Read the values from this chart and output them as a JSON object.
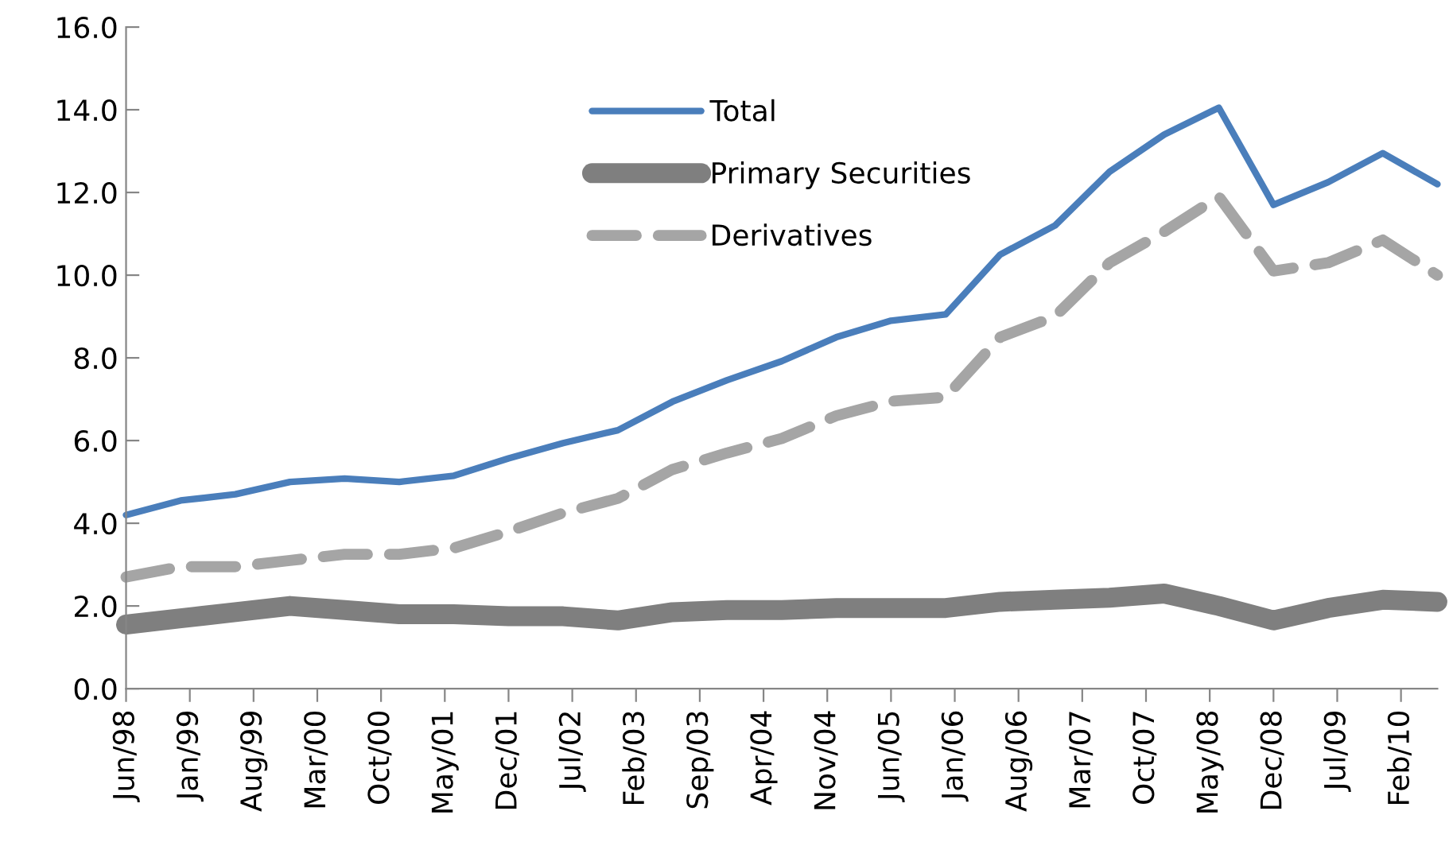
{
  "chart_data": {
    "type": "line",
    "x": [
      "1998-06",
      "1998-12",
      "1999-06",
      "1999-12",
      "2000-06",
      "2000-12",
      "2001-06",
      "2001-12",
      "2002-06",
      "2002-12",
      "2003-06",
      "2003-12",
      "2004-06",
      "2004-12",
      "2005-06",
      "2005-12",
      "2006-06",
      "2006-12",
      "2007-06",
      "2007-12",
      "2008-06",
      "2008-12",
      "2009-06",
      "2009-12",
      "2010-06"
    ],
    "series": [
      {
        "name": "Total",
        "color": "#4a7ebb",
        "line_style": "solid",
        "values": [
          4.2,
          4.55,
          4.7,
          5.0,
          5.08,
          5.0,
          5.15,
          5.57,
          5.94,
          6.25,
          6.94,
          7.46,
          7.92,
          8.5,
          8.9,
          9.05,
          10.5,
          11.2,
          12.5,
          13.4,
          14.05,
          11.7,
          12.25,
          12.95,
          12.2
        ]
      },
      {
        "name": "Primary Securities",
        "color": "#7f7f7f",
        "line_style": "solid",
        "values": [
          1.55,
          1.7,
          1.85,
          2.0,
          1.9,
          1.8,
          1.8,
          1.75,
          1.75,
          1.65,
          1.85,
          1.9,
          1.9,
          1.95,
          1.95,
          1.95,
          2.1,
          2.15,
          2.2,
          2.3,
          2.0,
          1.65,
          1.95,
          2.15,
          2.1
        ]
      },
      {
        "name": "Derivatives",
        "color": "#a5a5a5",
        "line_style": "dashed",
        "values": [
          2.7,
          2.95,
          2.95,
          3.1,
          3.25,
          3.25,
          3.4,
          3.8,
          4.25,
          4.6,
          5.3,
          5.7,
          6.05,
          6.6,
          6.95,
          7.05,
          8.5,
          9.0,
          10.3,
          11.05,
          11.9,
          10.1,
          10.3,
          10.85,
          10.0
        ]
      }
    ],
    "xlim": [
      "1998-06",
      "2010-06"
    ],
    "xticks": [
      {
        "value": "1998-06",
        "label": "Jun/98"
      },
      {
        "value": "1999-01",
        "label": "Jan/99"
      },
      {
        "value": "1999-08",
        "label": "Aug/99"
      },
      {
        "value": "2000-03",
        "label": "Mar/00"
      },
      {
        "value": "2000-10",
        "label": "Oct/00"
      },
      {
        "value": "2001-05",
        "label": "May/01"
      },
      {
        "value": "2001-12",
        "label": "Dec/01"
      },
      {
        "value": "2002-07",
        "label": "Jul/02"
      },
      {
        "value": "2003-02",
        "label": "Feb/03"
      },
      {
        "value": "2003-09",
        "label": "Sep/03"
      },
      {
        "value": "2004-04",
        "label": "Apr/04"
      },
      {
        "value": "2004-11",
        "label": "Nov/04"
      },
      {
        "value": "2005-06",
        "label": "Jun/05"
      },
      {
        "value": "2006-01",
        "label": "Jan/06"
      },
      {
        "value": "2006-08",
        "label": "Aug/06"
      },
      {
        "value": "2007-03",
        "label": "Mar/07"
      },
      {
        "value": "2007-10",
        "label": "Oct/07"
      },
      {
        "value": "2008-05",
        "label": "May/08"
      },
      {
        "value": "2008-12",
        "label": "Dec/08"
      },
      {
        "value": "2009-07",
        "label": "Jul/09"
      },
      {
        "value": "2010-02",
        "label": "Feb/10"
      }
    ],
    "ylim": [
      0,
      16
    ],
    "yticks": [
      {
        "value": 0,
        "label": "0.0"
      },
      {
        "value": 2,
        "label": "2.0"
      },
      {
        "value": 4,
        "label": "4.0"
      },
      {
        "value": 6,
        "label": "6.0"
      },
      {
        "value": 8,
        "label": "8.0"
      },
      {
        "value": 10,
        "label": "10.0"
      },
      {
        "value": 12,
        "label": "12.0"
      },
      {
        "value": 14,
        "label": "14.0"
      },
      {
        "value": 16,
        "label": "16.0"
      }
    ],
    "grid": false,
    "legend": "top",
    "marker": "none"
  }
}
